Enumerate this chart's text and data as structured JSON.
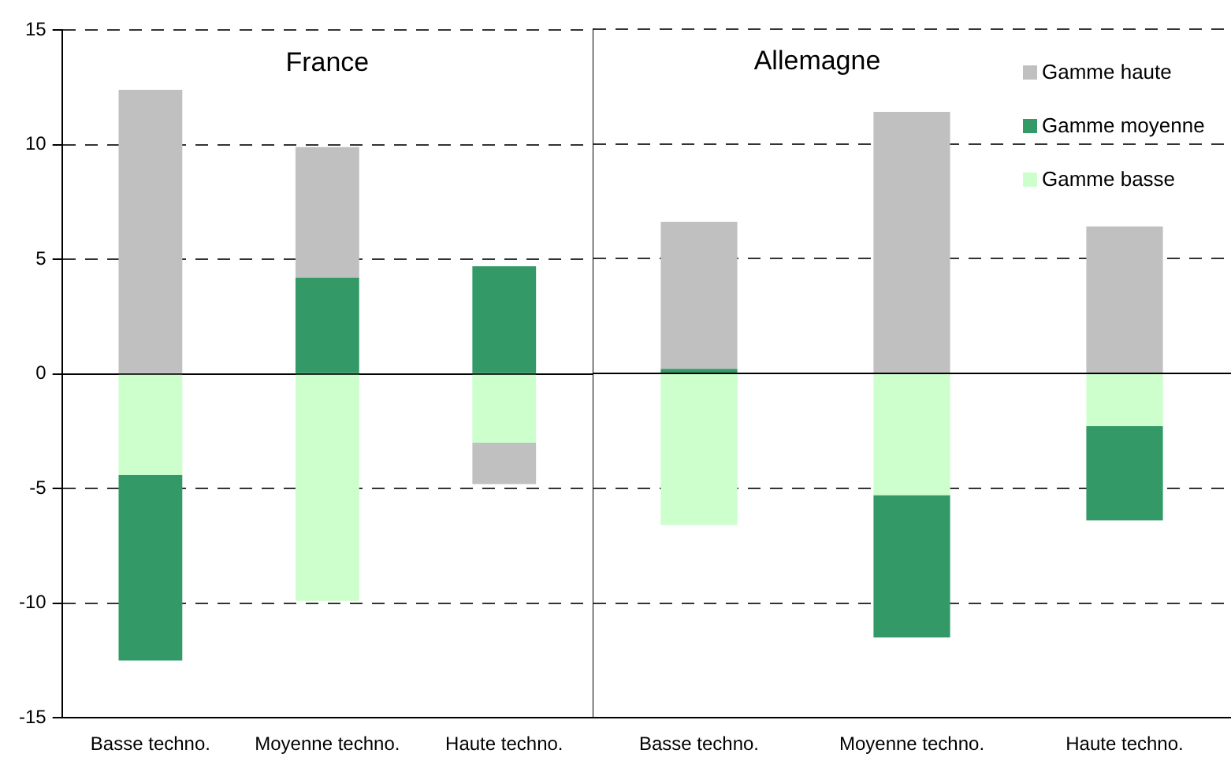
{
  "chart_data": [
    {
      "type": "bar",
      "stacked": true,
      "title": "France",
      "categories": [
        "Basse techno.",
        "Moyenne techno.",
        "Haute techno."
      ],
      "series": [
        {
          "color": "#ccffcc",
          "values": [
            -4.4,
            -9.9,
            -3.0
          ]
        },
        {
          "color": "#339966",
          "values": [
            -8.1,
            4.2,
            4.7
          ]
        },
        {
          "color": "#c0c0c0",
          "values": [
            12.4,
            5.7,
            -1.8
          ]
        }
      ],
      "ylim": [
        -15,
        15
      ],
      "yticks": [
        -15,
        -10,
        -5,
        0,
        5,
        10,
        15
      ],
      "grid": "y"
    },
    {
      "type": "bar",
      "stacked": true,
      "title": "Allemagne",
      "categories": [
        "Basse techno.",
        "Moyenne techno.",
        "Haute techno."
      ],
      "series": [
        {
          "name": "Gamme basse",
          "color": "#ccffcc",
          "values": [
            -6.6,
            -5.3,
            -2.3
          ]
        },
        {
          "name": "Gamme moyenne",
          "color": "#339966",
          "values": [
            0.2,
            -6.2,
            -4.1
          ]
        },
        {
          "name": "Gamme haute",
          "color": "#c0c0c0",
          "values": [
            6.4,
            11.4,
            6.4
          ]
        }
      ],
      "ylim": [
        -15,
        15
      ],
      "yticks": [
        -15,
        -10,
        -5,
        0,
        5,
        10,
        15
      ],
      "grid": "y",
      "tick_labels": "x",
      "legend": "top right"
    }
  ]
}
